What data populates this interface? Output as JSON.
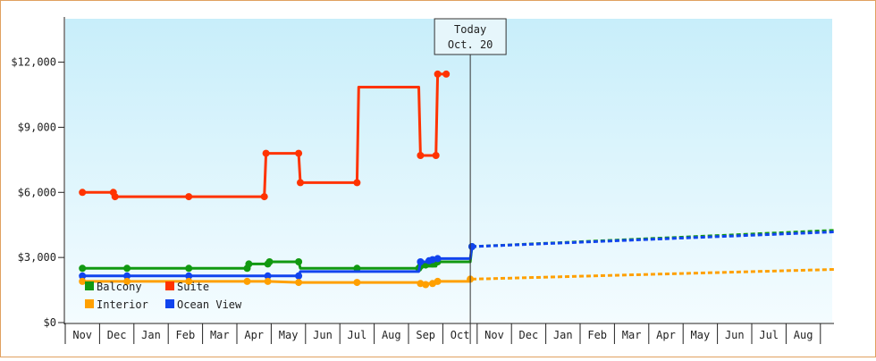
{
  "chart_data": {
    "type": "line",
    "title": "",
    "xlabel": "",
    "ylabel": "",
    "ylim": [
      0,
      14000
    ],
    "y_ticks": [
      "$0",
      "$3,000",
      "$6,000",
      "$9,000",
      "$12,000"
    ],
    "y_tick_values": [
      0,
      3000,
      6000,
      9000,
      12000
    ],
    "x_ticks": [
      "Nov",
      "Dec",
      "Jan",
      "Feb",
      "Mar",
      "Apr",
      "May",
      "Jun",
      "Jul",
      "Aug",
      "Sep",
      "Oct",
      "Nov",
      "Dec",
      "Jan",
      "Feb",
      "Mar",
      "Apr",
      "May",
      "Jun",
      "Jul",
      "Aug"
    ],
    "today_marker": {
      "line1": "Today",
      "line2": "Oct. 20",
      "x": 11.3
    },
    "legend_placement": "bottom-left",
    "grid": false,
    "series": [
      {
        "name": "Suite",
        "color": "#ff3300",
        "points": [
          [
            0.0,
            6000
          ],
          [
            0.9,
            6000
          ],
          [
            0.95,
            5800
          ],
          [
            3.1,
            5800
          ],
          [
            5.3,
            5800
          ],
          [
            5.35,
            7800
          ],
          [
            6.3,
            7800
          ],
          [
            6.35,
            6450
          ],
          [
            8.0,
            6450
          ],
          [
            8.05,
            10850
          ],
          [
            9.8,
            10850
          ],
          [
            9.85,
            7700
          ],
          [
            10.3,
            7700
          ],
          [
            10.35,
            11450
          ],
          [
            10.6,
            11450
          ]
        ],
        "markers": [
          [
            0.0,
            6000
          ],
          [
            0.9,
            6000
          ],
          [
            0.95,
            5800
          ],
          [
            3.1,
            5800
          ],
          [
            5.3,
            5800
          ],
          [
            5.35,
            7800
          ],
          [
            6.3,
            7800
          ],
          [
            6.35,
            6450
          ],
          [
            8.0,
            6450
          ],
          [
            9.85,
            7700
          ],
          [
            10.3,
            7700
          ],
          [
            10.35,
            11450
          ],
          [
            10.6,
            11450
          ]
        ]
      },
      {
        "name": "Balcony",
        "color": "#119911",
        "points": [
          [
            0.0,
            2500
          ],
          [
            1.3,
            2500
          ],
          [
            3.1,
            2500
          ],
          [
            4.8,
            2500
          ],
          [
            4.85,
            2700
          ],
          [
            5.4,
            2700
          ],
          [
            5.45,
            2800
          ],
          [
            6.3,
            2800
          ],
          [
            6.35,
            2500
          ],
          [
            8.0,
            2500
          ],
          [
            9.8,
            2500
          ],
          [
            9.85,
            2600
          ],
          [
            10.3,
            2600
          ],
          [
            10.35,
            2800
          ],
          [
            11.3,
            2800
          ],
          [
            11.35,
            3500
          ]
        ],
        "markers": [
          [
            0.0,
            2500
          ],
          [
            1.3,
            2500
          ],
          [
            3.1,
            2500
          ],
          [
            4.8,
            2500
          ],
          [
            4.85,
            2700
          ],
          [
            5.4,
            2700
          ],
          [
            5.45,
            2800
          ],
          [
            6.3,
            2800
          ],
          [
            8.0,
            2500
          ],
          [
            9.8,
            2500
          ],
          [
            9.85,
            2600
          ],
          [
            10.0,
            2650
          ],
          [
            10.2,
            2700
          ],
          [
            10.35,
            2800
          ],
          [
            11.35,
            3500
          ]
        ],
        "forecast": [
          [
            11.35,
            3500
          ],
          [
            21.9,
            4250
          ]
        ]
      },
      {
        "name": "Ocean View",
        "color": "#1144ee",
        "points": [
          [
            0.0,
            2150
          ],
          [
            1.3,
            2150
          ],
          [
            3.1,
            2150
          ],
          [
            5.4,
            2150
          ],
          [
            6.3,
            2150
          ],
          [
            6.35,
            2350
          ],
          [
            9.8,
            2350
          ],
          [
            9.85,
            2800
          ],
          [
            10.1,
            2800
          ],
          [
            10.15,
            2900
          ],
          [
            10.35,
            2950
          ],
          [
            11.3,
            2950
          ],
          [
            11.35,
            3500
          ]
        ],
        "markers": [
          [
            0.0,
            2150
          ],
          [
            1.3,
            2150
          ],
          [
            3.1,
            2150
          ],
          [
            5.4,
            2150
          ],
          [
            6.3,
            2150
          ],
          [
            9.85,
            2800
          ],
          [
            10.1,
            2850
          ],
          [
            10.2,
            2900
          ],
          [
            10.35,
            2950
          ],
          [
            11.35,
            3500
          ]
        ],
        "forecast": [
          [
            11.35,
            3500
          ],
          [
            21.9,
            4180
          ]
        ]
      },
      {
        "name": "Interior",
        "color": "#ffa000",
        "points": [
          [
            0.0,
            1900
          ],
          [
            1.3,
            1900
          ],
          [
            3.1,
            1900
          ],
          [
            4.8,
            1900
          ],
          [
            5.4,
            1900
          ],
          [
            6.3,
            1850
          ],
          [
            8.0,
            1850
          ],
          [
            9.8,
            1850
          ],
          [
            9.85,
            1800
          ],
          [
            10.3,
            1800
          ],
          [
            10.35,
            1900
          ],
          [
            11.3,
            1900
          ],
          [
            11.35,
            2000
          ]
        ],
        "markers": [
          [
            0.0,
            1900
          ],
          [
            1.3,
            1900
          ],
          [
            3.1,
            1900
          ],
          [
            4.8,
            1900
          ],
          [
            5.4,
            1900
          ],
          [
            6.3,
            1850
          ],
          [
            8.0,
            1850
          ],
          [
            9.85,
            1800
          ],
          [
            10.0,
            1750
          ],
          [
            10.2,
            1800
          ],
          [
            10.35,
            1900
          ],
          [
            11.3,
            2000
          ]
        ],
        "forecast": [
          [
            11.35,
            2000
          ],
          [
            21.9,
            2450
          ]
        ]
      }
    ]
  }
}
